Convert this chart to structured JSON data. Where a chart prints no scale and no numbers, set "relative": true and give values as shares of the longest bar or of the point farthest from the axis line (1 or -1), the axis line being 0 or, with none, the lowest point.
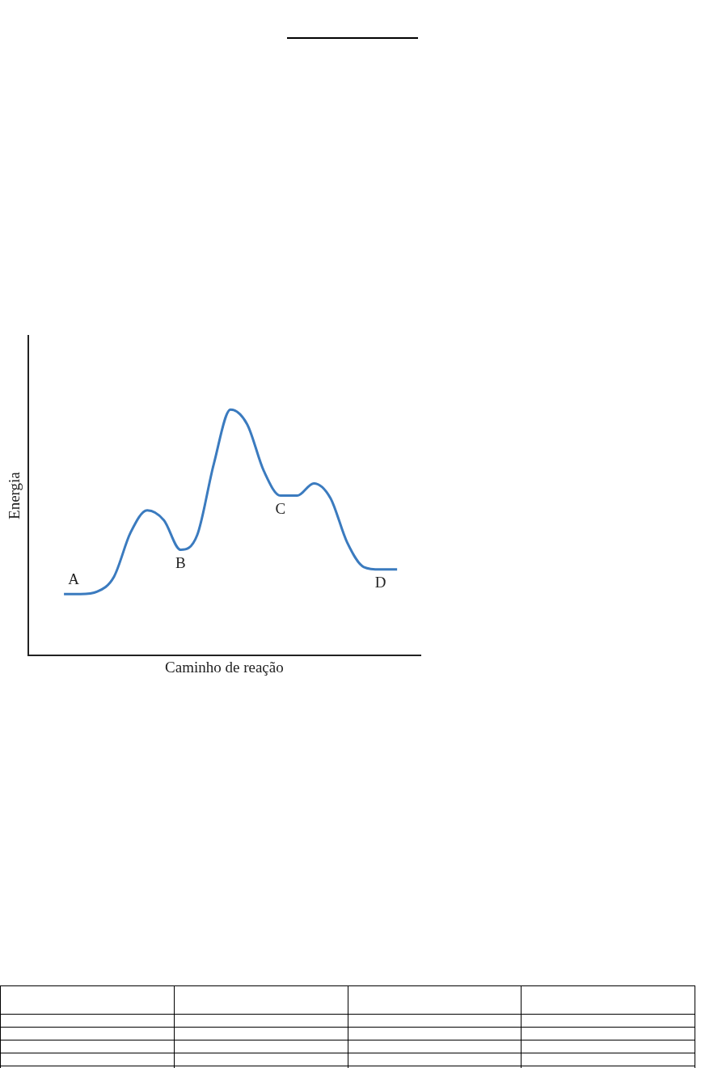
{
  "chart_data": {
    "type": "line",
    "xlabel": "Caminho de reação",
    "ylabel": "Energia",
    "relative": true,
    "grid": false,
    "legend": false,
    "marker": "none",
    "categories": [
      null,
      null,
      null,
      null,
      null,
      null,
      null,
      null,
      null,
      null,
      null,
      null,
      null,
      null,
      null,
      null,
      null,
      null,
      null,
      null,
      null
    ],
    "series": [
      {
        "color": "#3b7bbf",
        "values": [
          0.25,
          0.25,
          0.26,
          0.32,
          0.5,
          0.59,
          0.55,
          0.43,
          0.49,
          0.78,
          1,
          0.94,
          0.75,
          0.65,
          0.65,
          0.7,
          0.64,
          0.46,
          0.36,
          0.35,
          0.35
        ]
      }
    ],
    "annotations": [
      "A",
      "B",
      "C",
      "D"
    ]
  }
}
